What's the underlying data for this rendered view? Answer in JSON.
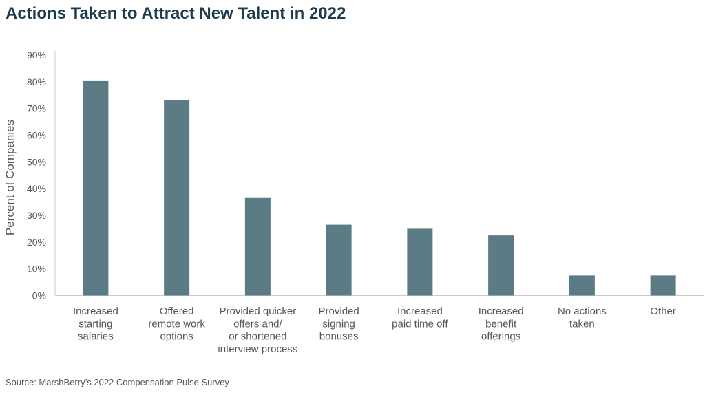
{
  "header": {
    "title": "Actions Taken to Attract New Talent in 2022"
  },
  "footer": {
    "source": "Source: MarshBerry’s 2022 Compensation Pulse Survey"
  },
  "colors": {
    "bar": "#5b7c84",
    "title": "#1d3b4c",
    "text": "#555555",
    "axis": "#cccccc"
  },
  "chart_data": {
    "type": "bar",
    "title": "Actions Taken to Attract New Talent in 2022",
    "xlabel": "",
    "ylabel": "Percent of Companies",
    "ylim": [
      0,
      90
    ],
    "yticks": [
      "0%",
      "10%",
      "20%",
      "30%",
      "40%",
      "50%",
      "60%",
      "70%",
      "80%",
      "90%"
    ],
    "grid": false,
    "legend": "none",
    "categories": [
      [
        "Increased",
        "starting",
        "salaries"
      ],
      [
        "Offered",
        "remote work",
        "options"
      ],
      [
        "Provided quicker",
        "offers and/",
        "or shortened",
        "interview process"
      ],
      [
        "Provided",
        "signing",
        "bonuses"
      ],
      [
        "Increased",
        "paid time off"
      ],
      [
        "Increased",
        "benefit",
        "offerings"
      ],
      [
        "No actions",
        "taken"
      ],
      [
        "Other"
      ]
    ],
    "values": [
      80.5,
      73,
      36.5,
      26.5,
      25,
      22.5,
      7.5,
      7.5
    ]
  }
}
